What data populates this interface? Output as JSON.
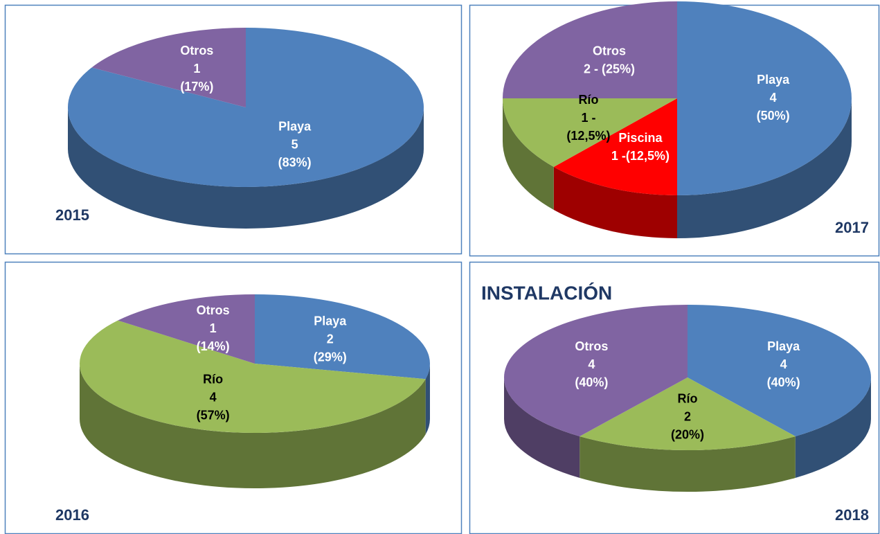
{
  "chart_data": [
    {
      "type": "pie",
      "title": "2015",
      "categories": [
        "Playa",
        "Otros"
      ],
      "values": [
        5,
        1
      ],
      "value_labels": [
        [
          "5",
          "(83%)"
        ],
        [
          "1",
          "(17%)"
        ]
      ],
      "colors": [
        "#4f81bd",
        "#8064a2"
      ]
    },
    {
      "type": "pie",
      "title": "2017",
      "categories": [
        "Playa",
        "Piscina",
        "Río",
        "Otros"
      ],
      "values": [
        4,
        1,
        1,
        2
      ],
      "value_labels": [
        [
          "4",
          "(50%)"
        ],
        [
          "1 -(12,5%)"
        ],
        [
          "1 -",
          "(12,5%)"
        ],
        [
          "2 - (25%)"
        ]
      ],
      "colors": [
        "#4f81bd",
        "#ff0000",
        "#9bbb59",
        "#8064a2"
      ]
    },
    {
      "type": "pie",
      "title": "2016",
      "categories": [
        "Playa",
        "Río",
        "Otros"
      ],
      "values": [
        2,
        4,
        1
      ],
      "value_labels": [
        [
          "2",
          "(29%)"
        ],
        [
          "4",
          "(57%)"
        ],
        [
          "1",
          "(14%)"
        ]
      ],
      "colors": [
        "#4f81bd",
        "#9bbb59",
        "#8064a2"
      ]
    },
    {
      "type": "pie",
      "title": "2018",
      "annotation": "INSTALACIÓN",
      "categories": [
        "Playa",
        "Río",
        "Otros"
      ],
      "values": [
        4,
        2,
        4
      ],
      "value_labels": [
        [
          "4",
          "(40%)"
        ],
        [
          "2",
          "(20%)"
        ],
        [
          "4",
          "(40%)"
        ]
      ],
      "colors": [
        "#4f81bd",
        "#9bbb59",
        "#8064a2"
      ]
    }
  ]
}
